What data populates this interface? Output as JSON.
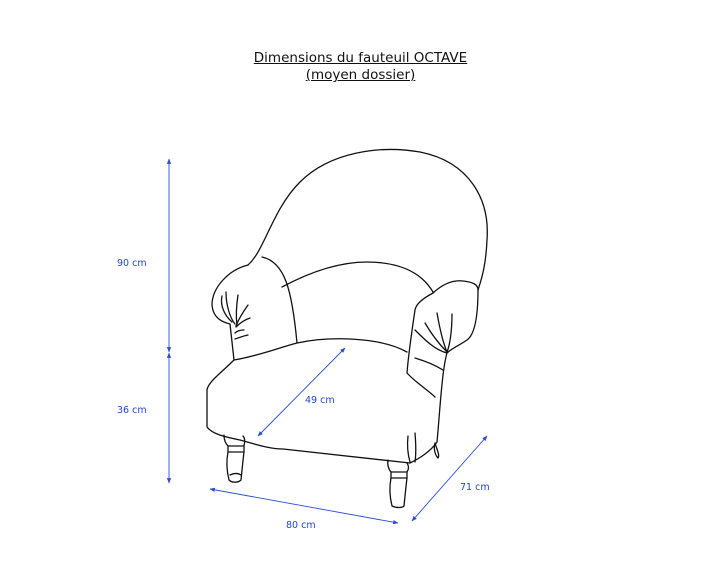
{
  "title": {
    "line1": "Dimensions du fauteuil OCTAVE",
    "line2": "(moyen dossier)"
  },
  "dimensions": {
    "total_height": "90 cm",
    "seat_height": "36 cm",
    "width": "80 cm",
    "depth": "71 cm",
    "seat_depth": "49 cm"
  },
  "colors": {
    "dimension": "#2b4fd0",
    "outline": "#111111"
  }
}
